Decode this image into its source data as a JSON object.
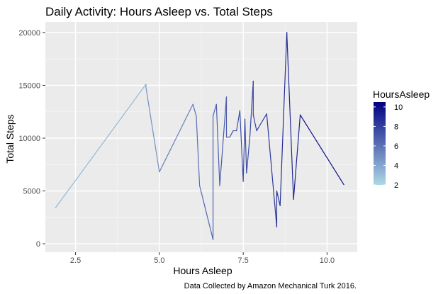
{
  "chart_data": {
    "type": "line",
    "title": "Daily Activity: Hours Asleep vs. Total Steps",
    "xlabel": "Hours Asleep",
    "ylabel": "Total Steps",
    "caption": "Data Collected by Amazon Mechanical Turk 2016.",
    "xlim": [
      1.6,
      10.9
    ],
    "ylim": [
      -800,
      21000
    ],
    "x_ticks": [
      2.5,
      5.0,
      7.5,
      10.0
    ],
    "x_tick_labels": [
      "2.5",
      "5.0",
      "7.5",
      "10.0"
    ],
    "y_ticks": [
      0,
      5000,
      10000,
      15000,
      20000
    ],
    "y_tick_labels": [
      "0",
      "5000",
      "10000",
      "15000",
      "20000"
    ],
    "grid": true,
    "legend": {
      "title": "HoursAsleep",
      "position": "right",
      "ticks": [
        2,
        4,
        6,
        8,
        10
      ],
      "tick_labels": [
        "2",
        "4",
        "6",
        "8",
        "10"
      ],
      "range": [
        2,
        10.5
      ],
      "color_low": "#add8e6",
      "color_high": "#000080"
    },
    "series": [
      {
        "x": [
          1.9,
          4.6,
          4.6,
          5.0,
          6.0,
          6.1,
          6.2,
          6.6,
          6.6,
          6.7,
          6.8,
          7.0,
          7.0,
          7.1,
          7.2,
          7.3,
          7.4,
          7.5,
          7.55,
          7.6,
          7.7,
          7.8,
          7.8,
          7.9,
          8.2,
          8.5,
          8.5,
          8.6,
          8.8,
          9.0,
          9.2,
          10.5
        ],
        "y": [
          3400,
          15100,
          14800,
          6800,
          13200,
          12100,
          5500,
          400,
          12100,
          13200,
          5500,
          13900,
          10100,
          10100,
          10700,
          10700,
          12600,
          5900,
          11800,
          6700,
          10200,
          15400,
          12200,
          10700,
          12300,
          1600,
          5000,
          3600,
          20000,
          4200,
          12200,
          5600
        ]
      }
    ],
    "colors": {
      "panel_bg": "#ebebeb",
      "grid_major": "#ffffff",
      "tick_text": "#4d4d4d"
    }
  }
}
